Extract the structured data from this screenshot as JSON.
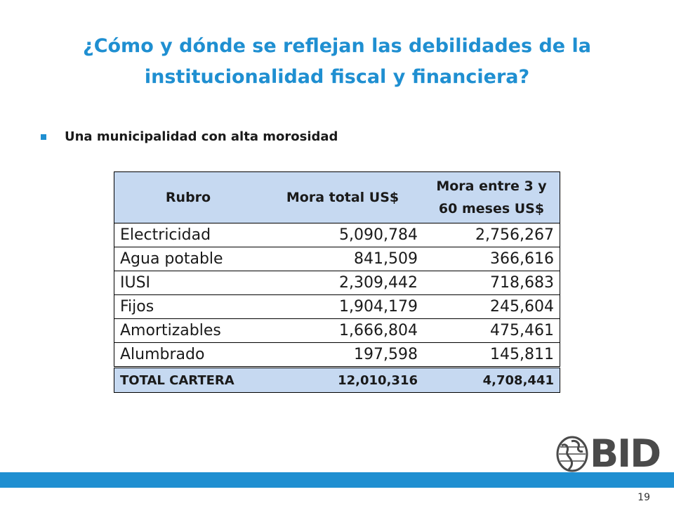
{
  "slide": {
    "title_line1": "¿Cómo y dónde se reflejan las debilidades de la",
    "title_line2": "institucionalidad fiscal y financiera?",
    "bullet": "Una municipalidad con alta morosidad",
    "page_number": "19"
  },
  "table": {
    "headers": [
      "Rubro",
      "Mora total US$",
      "Mora entre 3 y 60 meses US$"
    ],
    "rows": [
      [
        "Electricidad",
        "5,090,784",
        "2,756,267"
      ],
      [
        "Agua potable",
        "841,509",
        "366,616"
      ],
      [
        "IUSI",
        "2,309,442",
        "718,683"
      ],
      [
        "Fijos",
        "1,904,179",
        "245,604"
      ],
      [
        "Amortizables",
        "1,666,804",
        "475,461"
      ],
      [
        "Alumbrado",
        "197,598",
        "145,811"
      ]
    ],
    "total": [
      "TOTAL CARTERA",
      "12,010,316",
      "4,708,441"
    ]
  },
  "logo": {
    "text": "BID",
    "icon": "globe-icon"
  },
  "colors": {
    "accent": "#1f8fd1",
    "header_fill": "#c6d9f1",
    "logo_gray": "#4a4a4a"
  }
}
